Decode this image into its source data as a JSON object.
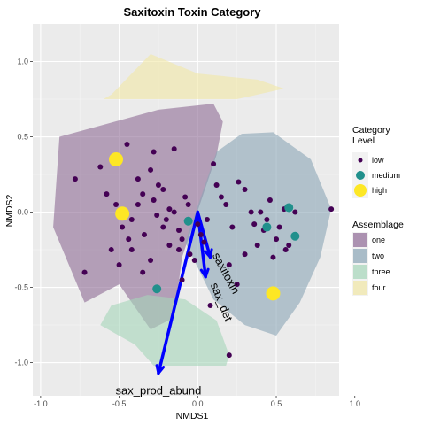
{
  "chart_data": {
    "type": "scatter",
    "title": "Saxitoxin Toxin Category",
    "xlabel": "NMDS1",
    "ylabel": "NMDS2",
    "xlim": [
      -1.05,
      0.9
    ],
    "ylim": [
      -1.22,
      1.25
    ],
    "xticks": [
      -1.0,
      -0.5,
      0.0,
      0.5,
      1.0
    ],
    "xtick_labels": [
      "-1.0",
      "-0.5",
      "0.0",
      "0.5",
      "1.0"
    ],
    "yticks": [
      -1.0,
      -0.5,
      0.0,
      0.5,
      1.0
    ],
    "ytick_labels": [
      "-1.0",
      "-0.5",
      "0.0",
      "0.5",
      "1.0"
    ],
    "grid": true,
    "colors": {
      "panel": "#ebebeb",
      "grid_major": "#ffffff",
      "point_low": "#440154",
      "point_medium": "#21908c",
      "point_high": "#fde725",
      "vector": "#0000ff"
    },
    "hulls": [
      {
        "name": "one",
        "fill": "#8e6a95",
        "points": [
          [
            -0.88,
            0.5
          ],
          [
            -0.25,
            0.68
          ],
          [
            0.1,
            0.72
          ],
          [
            0.16,
            0.6
          ],
          [
            0.12,
            0.38
          ],
          [
            -0.1,
            -0.3
          ],
          [
            -0.15,
            -0.7
          ],
          [
            -0.3,
            -0.78
          ],
          [
            -0.5,
            -0.48
          ],
          [
            -0.72,
            -0.6
          ],
          [
            -0.92,
            -0.1
          ]
        ]
      },
      {
        "name": "two",
        "fill": "#8aa5b6",
        "points": [
          [
            0.12,
            0.4
          ],
          [
            0.28,
            0.52
          ],
          [
            0.48,
            0.53
          ],
          [
            0.72,
            0.35
          ],
          [
            0.85,
            0.02
          ],
          [
            0.78,
            -0.3
          ],
          [
            0.65,
            -0.6
          ],
          [
            0.5,
            -0.82
          ],
          [
            0.3,
            -0.75
          ],
          [
            0.1,
            -0.58
          ],
          [
            -0.08,
            -0.2
          ]
        ]
      },
      {
        "name": "three",
        "fill": "#a5d6b9",
        "points": [
          [
            -0.55,
            -0.62
          ],
          [
            -0.32,
            -0.55
          ],
          [
            -0.08,
            -0.58
          ],
          [
            0.12,
            -0.72
          ],
          [
            0.2,
            -0.95
          ],
          [
            0.18,
            -1.02
          ],
          [
            -0.28,
            -1.02
          ],
          [
            -0.4,
            -0.88
          ],
          [
            -0.62,
            -0.75
          ]
        ]
      },
      {
        "name": "four",
        "fill": "#f1e7a5",
        "points": [
          [
            -0.55,
            0.78
          ],
          [
            -0.3,
            1.05
          ],
          [
            0.0,
            0.92
          ],
          [
            0.38,
            0.88
          ],
          [
            0.55,
            0.82
          ],
          [
            0.25,
            0.75
          ],
          [
            -0.6,
            0.75
          ]
        ]
      }
    ],
    "series": [
      {
        "name": "low",
        "size": 3,
        "x": [
          -0.78,
          -0.72,
          -0.62,
          -0.58,
          -0.52,
          -0.48,
          -0.44,
          -0.38,
          -0.35,
          -0.3,
          -0.28,
          -0.26,
          -0.22,
          -0.2,
          -0.18,
          -0.15,
          -0.12,
          -0.1,
          -0.08,
          -0.06,
          -0.05,
          -0.02,
          0.0,
          0.02,
          0.04,
          -0.55,
          -0.5,
          -0.45,
          -0.42,
          -0.38,
          -0.34,
          -0.3,
          -0.25,
          -0.22,
          -0.18,
          -0.35,
          -0.42,
          -0.15,
          -0.28,
          -0.12,
          0.1,
          0.12,
          0.15,
          0.18,
          0.22,
          0.26,
          0.3,
          0.34,
          0.36,
          0.4,
          0.42,
          0.44,
          0.46,
          0.5,
          0.55,
          0.58,
          0.62,
          0.3,
          0.38,
          0.2,
          0.25,
          0.85,
          0.2,
          0.48,
          0.52,
          0.56,
          -0.1,
          0.08,
          0.06
        ],
        "y": [
          0.22,
          -0.4,
          0.3,
          0.12,
          0.05,
          -0.1,
          -0.18,
          0.22,
          0.12,
          0.28,
          0.08,
          -0.02,
          0.15,
          -0.05,
          -0.22,
          0.0,
          -0.12,
          -0.18,
          0.1,
          0.05,
          -0.28,
          -0.32,
          -0.08,
          -0.15,
          -0.2,
          -0.25,
          -0.35,
          0.45,
          -0.05,
          0.05,
          -0.15,
          -0.32,
          0.18,
          -0.1,
          0.02,
          -0.4,
          -0.25,
          0.42,
          0.4,
          -0.25,
          0.32,
          0.18,
          0.1,
          0.05,
          -0.1,
          0.2,
          0.15,
          0.0,
          -0.08,
          0.0,
          -0.12,
          -0.05,
          0.08,
          -0.18,
          0.02,
          -0.22,
          0.0,
          -0.28,
          -0.22,
          -0.35,
          -0.48,
          0.02,
          -0.95,
          -0.3,
          -0.1,
          -0.25,
          -0.45,
          -0.62,
          -0.05
        ]
      },
      {
        "name": "medium",
        "size": 5,
        "x": [
          -0.06,
          0.58,
          0.44,
          0.62,
          -0.26
        ],
        "y": [
          -0.06,
          0.03,
          -0.1,
          -0.16,
          -0.51
        ]
      },
      {
        "name": "high",
        "size": 8,
        "x": [
          -0.52,
          -0.48,
          0.48
        ],
        "y": [
          0.35,
          -0.01,
          -0.54
        ]
      }
    ],
    "vectors": [
      {
        "label": "saxitoxin",
        "x": 0.08,
        "y": -0.3
      },
      {
        "label": "sax_det",
        "x": 0.05,
        "y": -0.43
      },
      {
        "label": "sax_prod_abund",
        "x": -0.25,
        "y": -1.07
      }
    ],
    "legend": {
      "placement": "right",
      "category_title_line1": "Category",
      "category_title_line2": "Level",
      "category_items": [
        {
          "label": "low",
          "series": "low"
        },
        {
          "label": "medium",
          "series": "medium"
        },
        {
          "label": "high",
          "series": "high"
        }
      ],
      "assemblage_title": "Assemblage",
      "assemblage_items": [
        "one",
        "two",
        "three",
        "four"
      ]
    }
  }
}
